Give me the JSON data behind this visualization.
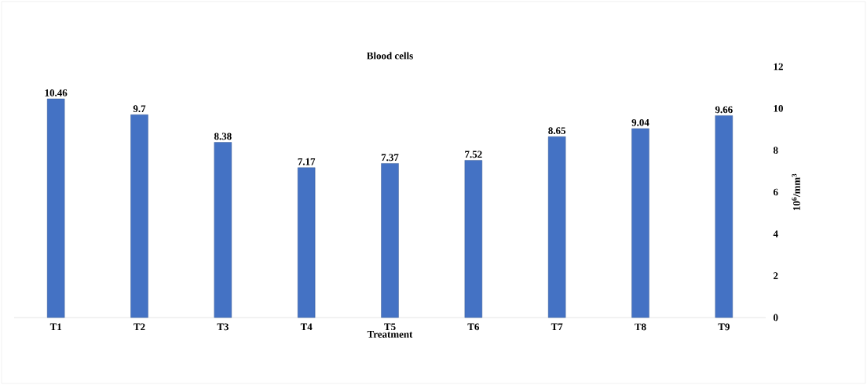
{
  "chart_data": {
    "type": "bar",
    "title": "Blood cells",
    "xlabel": "Treatment",
    "ylabel": "10$^{6}$/mm$^{3}$",
    "categories": [
      "T1",
      "T2",
      "T3",
      "T4",
      "T5",
      "T6",
      "T7",
      "T8",
      "T9"
    ],
    "values": [
      10.46,
      9.7,
      8.38,
      7.17,
      7.37,
      7.52,
      8.65,
      9.04,
      9.66
    ],
    "color": "#4472c4",
    "ylim": [
      0,
      12
    ],
    "yticks": [
      0,
      2,
      4,
      6,
      8,
      10,
      12
    ],
    "data_labels": true
  }
}
